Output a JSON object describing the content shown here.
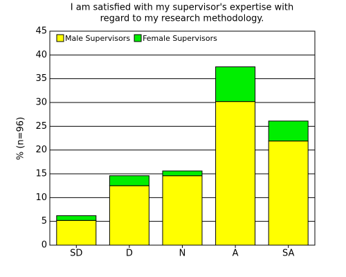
{
  "chart_data": {
    "type": "stacked_bar",
    "title": [
      "I am satisfied with my supervisor's expertise with",
      "regard to my research methodology."
    ],
    "y_label": "% (n=96)",
    "categories": [
      "SD",
      "D",
      "N",
      "A",
      "SA"
    ],
    "series": [
      {
        "name": "Male Supervisors",
        "color": "#ffff00",
        "values": [
          5.2,
          12.5,
          14.6,
          30.2,
          21.9
        ]
      },
      {
        "name": "Female Supervisors",
        "color": "#00ee00",
        "values": [
          1.0,
          2.1,
          1.0,
          7.3,
          4.2
        ]
      }
    ],
    "ylim": [
      0,
      45
    ],
    "yticks": [
      0,
      5,
      10,
      15,
      20,
      25,
      30,
      35,
      40,
      45
    ],
    "grid": true,
    "legend": "top-left"
  }
}
